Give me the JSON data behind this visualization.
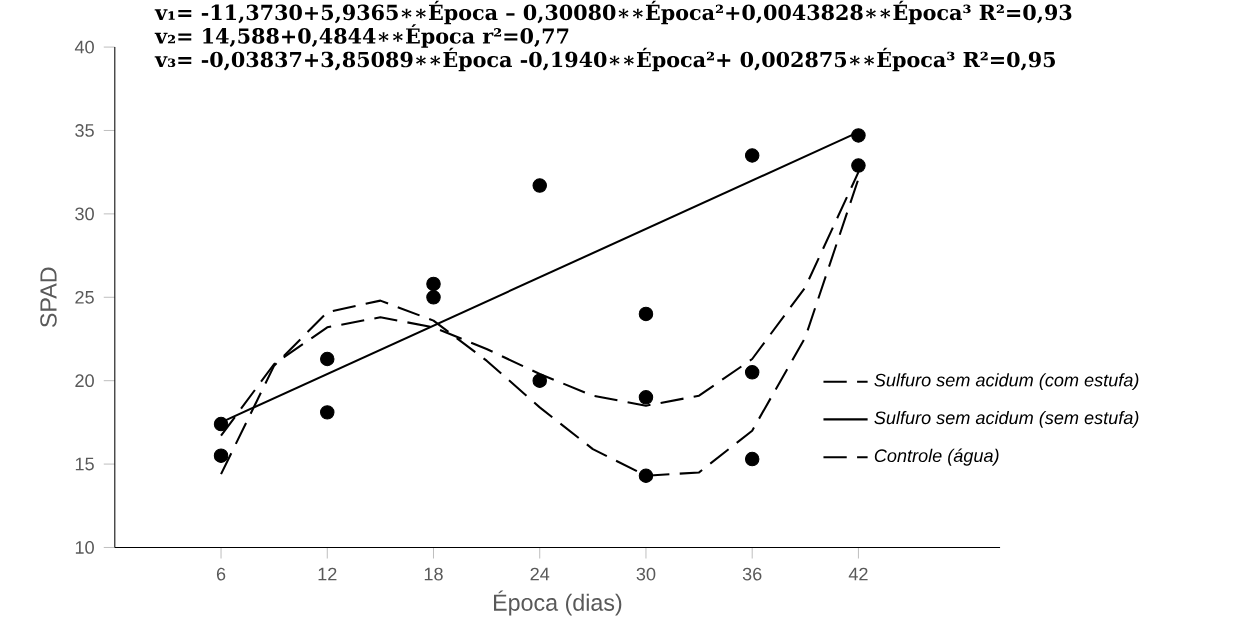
{
  "chart_data": {
    "type": "line",
    "xlabel": "Época (dias)",
    "ylabel": "SPAD",
    "annotations": [
      "v₁= -11,3730+5,9365∗∗Época – 0,30080∗∗Época²+0,0043828∗∗Época³   R²=0,93",
      "v₂= 14,588+0,4844∗∗Época        r²=0,77",
      "v₃= -0,03837+3,85089∗∗Época -0,1940∗∗Época²+ 0,002875∗∗Época³          R²=0,95"
    ],
    "xlim": [
      0,
      50
    ],
    "ylim": [
      10,
      40
    ],
    "xticks": [
      6,
      12,
      18,
      24,
      30,
      36,
      42
    ],
    "yticks": [
      10,
      15,
      20,
      25,
      30,
      35,
      40
    ],
    "grid": false,
    "legend": "right",
    "series": [
      {
        "type": "scatter",
        "color": "#000000",
        "marker": "circle",
        "x": [
          6,
          6,
          12,
          12,
          18,
          18,
          24,
          24,
          30,
          30,
          30,
          36,
          36,
          36,
          42,
          42
        ],
        "values": [
          15.5,
          17.4,
          18.1,
          21.3,
          25.0,
          25.8,
          20.0,
          31.7,
          14.3,
          19.0,
          24.0,
          15.3,
          20.5,
          33.5,
          32.9,
          34.7
        ]
      },
      {
        "name": "Sulfuro sem acidum (com estufa)",
        "color": "#000000",
        "line_style": "dashed",
        "marker": "none",
        "x": [
          6,
          9,
          12,
          15,
          18,
          21,
          24,
          27,
          30,
          33,
          36,
          39,
          42
        ],
        "values": [
          14.4,
          20.9,
          24.1,
          24.8,
          23.6,
          21.2,
          18.4,
          15.9,
          14.3,
          14.5,
          17.0,
          22.6,
          32.1
        ]
      },
      {
        "name": "Sulfuro sem acidum (sem estufa)",
        "color": "#000000",
        "line_style": "solid",
        "marker": "none",
        "x": [
          6,
          42
        ],
        "values": [
          17.5,
          34.9
        ]
      },
      {
        "name": "Controle (água)",
        "color": "#000000",
        "line_style": "dashed",
        "marker": "none",
        "x": [
          6,
          9,
          12,
          15,
          18,
          21,
          24,
          27,
          30,
          33,
          36,
          39,
          42
        ],
        "values": [
          16.7,
          21.0,
          23.2,
          23.8,
          23.2,
          21.9,
          20.4,
          19.1,
          18.5,
          19.1,
          21.3,
          25.6,
          32.5
        ]
      }
    ]
  }
}
